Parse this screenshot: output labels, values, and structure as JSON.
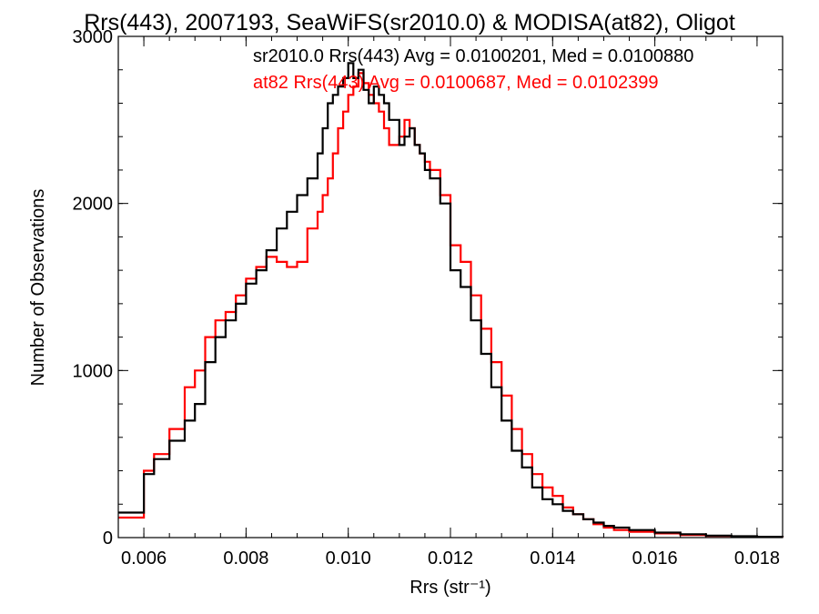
{
  "chart_data": {
    "type": "line",
    "title": "Rrs(443), 2007193, SeaWiFS(sr2010.0) & MODISA(at82), Oligot",
    "xlabel": "Rrs (str⁻¹)",
    "ylabel": "Number of Observations",
    "xlim": [
      0.0055,
      0.0185
    ],
    "ylim": [
      0,
      3000
    ],
    "x_ticks": [
      "0.006",
      "0.008",
      "0.010",
      "0.012",
      "0.014",
      "0.016",
      "0.018"
    ],
    "y_ticks": [
      "0",
      "1000",
      "2000",
      "3000"
    ],
    "grid": false,
    "step": true,
    "annotations": [
      {
        "text": "sr2010.0 Rrs(443) Avg = 0.0100201, Med = 0.0100880",
        "color": "#000000"
      },
      {
        "text": "at82 Rrs(443) Avg = 0.0100687, Med = 0.0102399",
        "color": "#ff0000"
      }
    ],
    "series": [
      {
        "name": "sr2010.0",
        "color": "#000000",
        "x": [
          0.0055,
          0.006,
          0.0062,
          0.0065,
          0.0068,
          0.007,
          0.0072,
          0.0074,
          0.0076,
          0.0078,
          0.008,
          0.0082,
          0.0084,
          0.0086,
          0.0088,
          0.009,
          0.0092,
          0.0094,
          0.0095,
          0.0096,
          0.0097,
          0.0098,
          0.0099,
          0.01,
          0.0101,
          0.0102,
          0.0103,
          0.0104,
          0.0105,
          0.0106,
          0.0107,
          0.0108,
          0.011,
          0.0111,
          0.0112,
          0.0113,
          0.0114,
          0.0115,
          0.0116,
          0.0118,
          0.012,
          0.0122,
          0.0124,
          0.0126,
          0.0128,
          0.013,
          0.0132,
          0.0134,
          0.0136,
          0.0138,
          0.014,
          0.0142,
          0.0144,
          0.0146,
          0.0148,
          0.015,
          0.0152,
          0.0155,
          0.016,
          0.0165,
          0.017,
          0.0175,
          0.018,
          0.0185
        ],
        "y": [
          150,
          380,
          470,
          580,
          700,
          800,
          1050,
          1200,
          1300,
          1400,
          1520,
          1600,
          1720,
          1850,
          1950,
          2050,
          2150,
          2300,
          2450,
          2600,
          2650,
          2700,
          2750,
          2840,
          2750,
          2800,
          2680,
          2600,
          2700,
          2650,
          2600,
          2500,
          2350,
          2400,
          2450,
          2350,
          2300,
          2200,
          2150,
          2000,
          1600,
          1500,
          1300,
          1100,
          900,
          700,
          520,
          420,
          300,
          230,
          200,
          160,
          140,
          110,
          90,
          70,
          60,
          45,
          30,
          20,
          12,
          8,
          5,
          3
        ]
      },
      {
        "name": "at82",
        "color": "#ff0000",
        "x": [
          0.0055,
          0.006,
          0.0062,
          0.0065,
          0.0068,
          0.007,
          0.0072,
          0.0074,
          0.0076,
          0.0078,
          0.008,
          0.0082,
          0.0084,
          0.0086,
          0.0088,
          0.009,
          0.0092,
          0.0094,
          0.0095,
          0.0096,
          0.0097,
          0.0098,
          0.0099,
          0.01,
          0.0101,
          0.0102,
          0.0103,
          0.0104,
          0.0105,
          0.0106,
          0.0107,
          0.0108,
          0.011,
          0.0111,
          0.0112,
          0.0113,
          0.0114,
          0.0115,
          0.0116,
          0.0118,
          0.012,
          0.0122,
          0.0124,
          0.0126,
          0.0128,
          0.013,
          0.0132,
          0.0134,
          0.0136,
          0.0138,
          0.014,
          0.0142,
          0.0144,
          0.0146,
          0.0148,
          0.015,
          0.0152,
          0.0155,
          0.016,
          0.0165,
          0.017,
          0.0175,
          0.018,
          0.0185
        ],
        "y": [
          120,
          400,
          500,
          650,
          900,
          1000,
          1200,
          1300,
          1350,
          1450,
          1550,
          1620,
          1680,
          1650,
          1620,
          1650,
          1850,
          1950,
          2050,
          2150,
          2300,
          2450,
          2550,
          2650,
          2700,
          2780,
          2720,
          2650,
          2600,
          2550,
          2450,
          2350,
          2400,
          2500,
          2450,
          2350,
          2300,
          2250,
          2200,
          2050,
          1750,
          1650,
          1450,
          1250,
          1050,
          850,
          650,
          500,
          380,
          300,
          250,
          180,
          140,
          110,
          80,
          60,
          45,
          35,
          25,
          15,
          10,
          6,
          4,
          2
        ]
      }
    ]
  }
}
